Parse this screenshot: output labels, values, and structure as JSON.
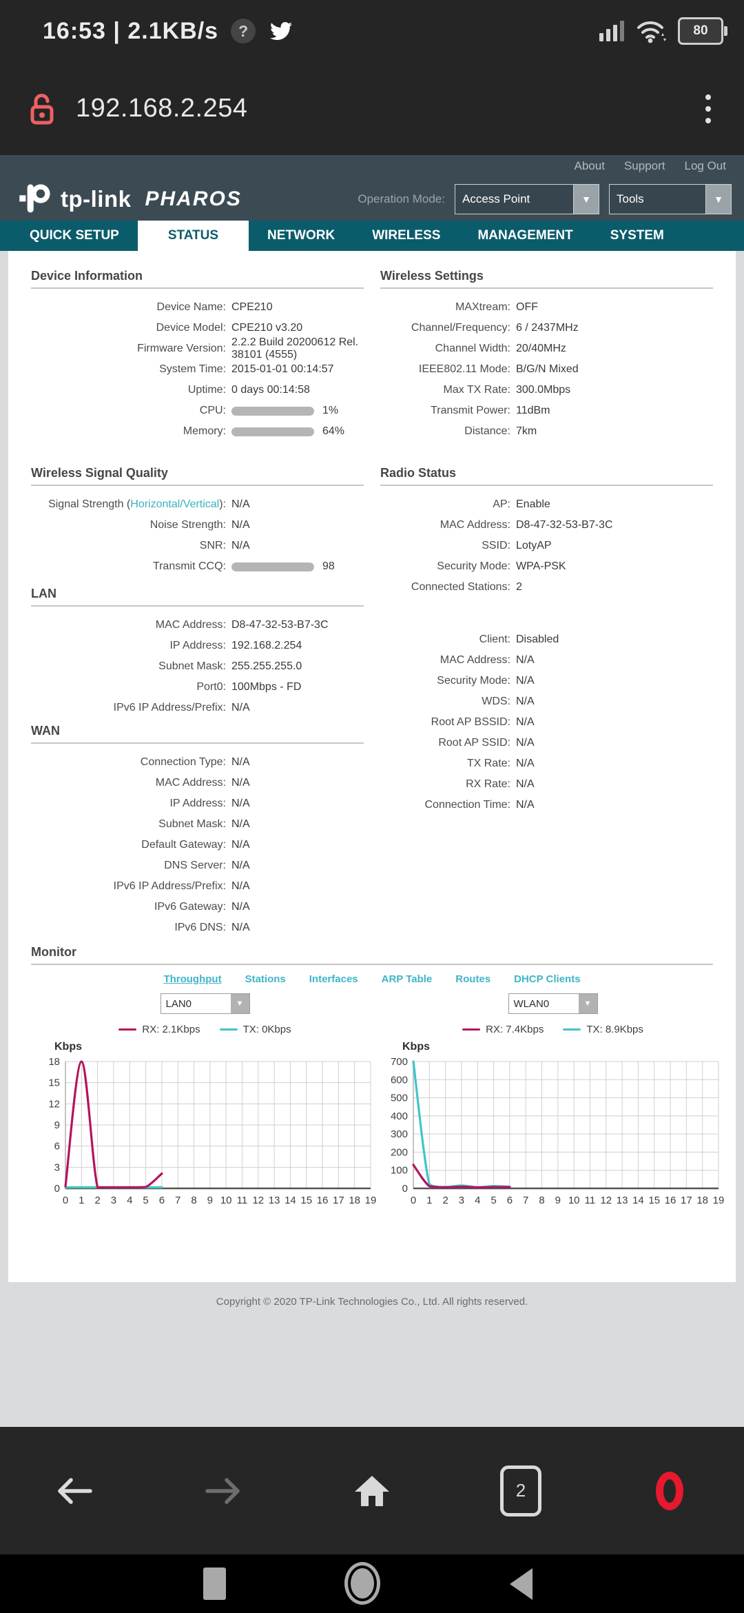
{
  "status_bar": {
    "left_text": "16:53 | 2.1KB/s",
    "battery_level": "80"
  },
  "address_bar": {
    "url": "192.168.2.254"
  },
  "header": {
    "brand": "tp-link",
    "product": "PHAROS",
    "links": [
      "About",
      "Support",
      "Log Out"
    ],
    "operation_mode_label": "Operation Mode:",
    "operation_mode_value": "Access Point",
    "tools_value": "Tools"
  },
  "nav_tabs": [
    {
      "label": "QUICK SETUP",
      "active": false
    },
    {
      "label": "STATUS",
      "active": true
    },
    {
      "label": "NETWORK",
      "active": false
    },
    {
      "label": "WIRELESS",
      "active": false
    },
    {
      "label": "MANAGEMENT",
      "active": false
    },
    {
      "label": "SYSTEM",
      "active": false
    }
  ],
  "sections": {
    "left": [
      {
        "id": "device-information",
        "title": "Device Information",
        "margin": "",
        "rows": [
          {
            "label": "Device Name:",
            "value": "CPE210"
          },
          {
            "label": "Device Model:",
            "value": "CPE210 v3.20"
          },
          {
            "label": "Firmware Version:",
            "value": "2.2.2 Build 20200612 Rel. 38101 (4555)"
          },
          {
            "label": "System Time:",
            "value": "2015-01-01 00:14:57"
          },
          {
            "label": "Uptime:",
            "value": "0 days 00:14:58"
          },
          {
            "label": "CPU:",
            "bar_percent": 1,
            "value": "1%"
          },
          {
            "label": "Memory:",
            "bar_percent": 64,
            "value": "64%"
          }
        ]
      },
      {
        "id": "wireless-signal-quality",
        "title": "Wireless Signal Quality",
        "margin": "mt35",
        "rows": [
          {
            "label_prefix": "Signal Strength (",
            "label_link": "Horizontal/Vertical",
            "label_suffix": "):",
            "value": "N/A"
          },
          {
            "label": "Noise Strength:",
            "value": "N/A"
          },
          {
            "label": "SNR:",
            "value": "N/A"
          },
          {
            "label": "Transmit CCQ:",
            "bar_percent": 98,
            "value": "98"
          }
        ]
      },
      {
        "id": "lan",
        "title": "LAN",
        "margin": "mt14",
        "rows": [
          {
            "label": "MAC Address:",
            "value": "D8-47-32-53-B7-3C"
          },
          {
            "label": "IP Address:",
            "value": "192.168.2.254"
          },
          {
            "label": "Subnet Mask:",
            "value": "255.255.255.0"
          },
          {
            "label": "Port0:",
            "value": "100Mbps - FD"
          },
          {
            "label": "IPv6 IP Address/Prefix:",
            "value": "N/A"
          }
        ]
      },
      {
        "id": "wan",
        "title": "WAN",
        "margin": "mt8",
        "rows": [
          {
            "label": "Connection Type:",
            "value": "N/A"
          },
          {
            "label": "MAC Address:",
            "value": "N/A"
          },
          {
            "label": "IP Address:",
            "value": "N/A"
          },
          {
            "label": "Subnet Mask:",
            "value": "N/A"
          },
          {
            "label": "Default Gateway:",
            "value": "N/A"
          },
          {
            "label": "DNS Server:",
            "value": "N/A"
          },
          {
            "label": "IPv6 IP Address/Prefix:",
            "value": "N/A"
          },
          {
            "label": "IPv6 Gateway:",
            "value": "N/A"
          },
          {
            "label": "IPv6 DNS:",
            "value": "N/A"
          }
        ]
      }
    ],
    "right": [
      {
        "id": "wireless-settings",
        "title": "Wireless Settings",
        "margin": "",
        "rows": [
          {
            "label": "MAXtream:",
            "value": "OFF"
          },
          {
            "label": "Channel/Frequency:",
            "value": "6 / 2437MHz"
          },
          {
            "label": "Channel Width:",
            "value": "20/40MHz"
          },
          {
            "label": "IEEE802.11 Mode:",
            "value": "B/G/N Mixed"
          },
          {
            "label": "Max TX Rate:",
            "value": "300.0Mbps"
          },
          {
            "label": "Transmit Power:",
            "value": "11dBm"
          },
          {
            "label": "Distance:",
            "value": "7km"
          }
        ]
      },
      {
        "id": "radio-status",
        "title": "Radio Status",
        "margin": "mt35",
        "rows": [
          {
            "label": "AP:",
            "value": "Enable"
          },
          {
            "label": "MAC Address:",
            "value": "D8-47-32-53-B7-3C"
          },
          {
            "label": "SSID:",
            "value": "LotyAP"
          },
          {
            "label": "Security Mode:",
            "value": "WPA-PSK"
          },
          {
            "label": "Connected Stations:",
            "value": "2"
          }
        ]
      },
      {
        "id": "client-status",
        "title": "",
        "margin": "mt46",
        "rows": [
          {
            "label": "Client:",
            "value": "Disabled"
          },
          {
            "label": "MAC Address:",
            "value": "N/A"
          },
          {
            "label": "Security Mode:",
            "value": "N/A"
          },
          {
            "label": "WDS:",
            "value": "N/A"
          },
          {
            "label": "Root AP BSSID:",
            "value": "N/A"
          },
          {
            "label": "Root AP SSID:",
            "value": "N/A"
          },
          {
            "label": "TX Rate:",
            "value": "N/A"
          },
          {
            "label": "RX Rate:",
            "value": "N/A"
          },
          {
            "label": "Connection Time:",
            "value": "N/A"
          }
        ]
      }
    ]
  },
  "monitor": {
    "title": "Monitor",
    "tabs": [
      {
        "label": "Throughput",
        "active": true
      },
      {
        "label": "Stations",
        "active": false
      },
      {
        "label": "Interfaces",
        "active": false
      },
      {
        "label": "ARP Table",
        "active": false
      },
      {
        "label": "Routes",
        "active": false
      },
      {
        "label": "DHCP Clients",
        "active": false
      }
    ]
  },
  "chart_data": [
    {
      "type": "line",
      "interface": "LAN0",
      "title": "",
      "xlabel": "",
      "ylabel": "Kbps",
      "xlim": [
        0,
        19
      ],
      "x_tick_step": 1,
      "ylim": [
        0,
        18
      ],
      "y_tick_step": 3,
      "grid": true,
      "legend_position": "top",
      "series": [
        {
          "name": "RX: 2.1Kbps",
          "color": "#b4135f",
          "x": [
            0,
            1,
            2,
            3,
            4,
            5,
            6
          ],
          "values": [
            0.3,
            18,
            0,
            0,
            0,
            0.2,
            2.1
          ]
        },
        {
          "name": "TX: 0Kbps",
          "color": "#41c4c8",
          "x": [
            0,
            1,
            2,
            3,
            4,
            5,
            6
          ],
          "values": [
            0,
            0,
            0,
            0,
            0,
            0,
            0
          ]
        }
      ]
    },
    {
      "type": "line",
      "interface": "WLAN0",
      "title": "",
      "xlabel": "",
      "ylabel": "Kbps",
      "xlim": [
        0,
        19
      ],
      "x_tick_step": 1,
      "ylim": [
        0,
        700
      ],
      "y_tick_step": 100,
      "grid": true,
      "legend_position": "top",
      "series": [
        {
          "name": "RX: 7.4Kbps",
          "color": "#b4135f",
          "x": [
            0,
            1,
            2,
            3,
            4,
            5,
            6
          ],
          "values": [
            130,
            12,
            5,
            9,
            4,
            7,
            7.4
          ]
        },
        {
          "name": "TX: 8.9Kbps",
          "color": "#41c4c8",
          "x": [
            0,
            1,
            2,
            3,
            4,
            5,
            6
          ],
          "values": [
            700,
            22,
            8,
            16,
            6,
            13,
            8.9
          ]
        }
      ]
    }
  ],
  "footer": {
    "copyright": "Copyright © 2020 TP-Link Technologies Co., Ltd. All rights reserved."
  },
  "browser_toolbar": {
    "tab_count": "2"
  },
  "colors": {
    "nav_teal": "#0b5c6b",
    "link_teal": "#3ab1c4",
    "rx_line": "#b4135f",
    "tx_line": "#41c4c8",
    "lock_red": "#ee6161",
    "opera_red": "#e6192e",
    "progress_fill": "#175f6d"
  }
}
